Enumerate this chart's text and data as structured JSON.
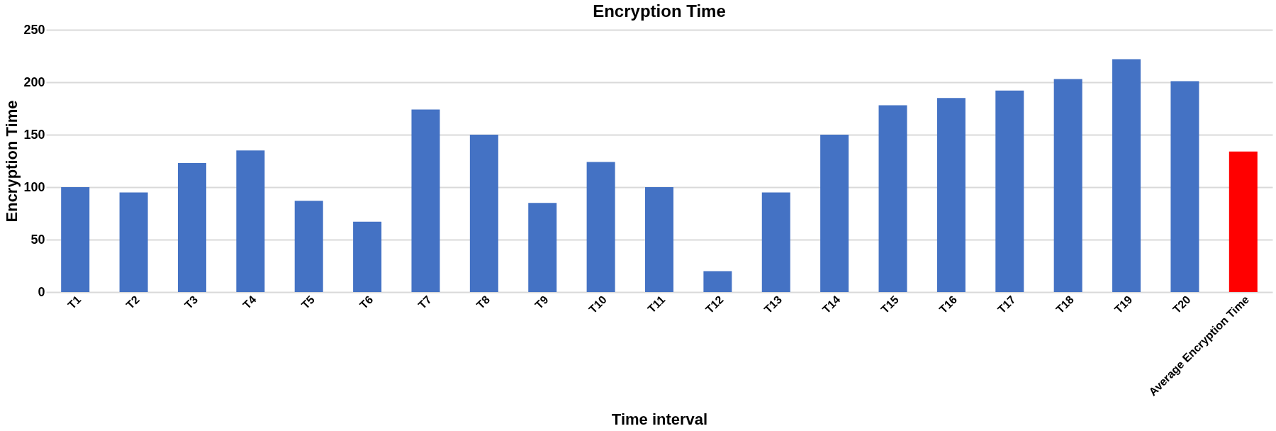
{
  "chart_data": {
    "type": "bar",
    "title": "Encryption Time",
    "xlabel": "Time interval",
    "ylabel": "Encryption Time",
    "categories": [
      "T1",
      "T2",
      "T3",
      "T4",
      "T5",
      "T6",
      "T7",
      "T8",
      "T9",
      "T10",
      "T11",
      "T12",
      "T13",
      "T14",
      "T15",
      "T16",
      "T17",
      "T18",
      "T19",
      "T20",
      "Average Encryption Time"
    ],
    "values": [
      100,
      95,
      123,
      135,
      87,
      67,
      174,
      150,
      85,
      124,
      100,
      20,
      95,
      150,
      178,
      185,
      192,
      203,
      222,
      201,
      134
    ],
    "colors": [
      "#4472c4",
      "#4472c4",
      "#4472c4",
      "#4472c4",
      "#4472c4",
      "#4472c4",
      "#4472c4",
      "#4472c4",
      "#4472c4",
      "#4472c4",
      "#4472c4",
      "#4472c4",
      "#4472c4",
      "#4472c4",
      "#4472c4",
      "#4472c4",
      "#4472c4",
      "#4472c4",
      "#4472c4",
      "#4472c4",
      "#ff0000"
    ],
    "ylim": [
      0,
      250
    ],
    "yticks": [
      0,
      50,
      100,
      150,
      200,
      250
    ],
    "grid": "y"
  }
}
